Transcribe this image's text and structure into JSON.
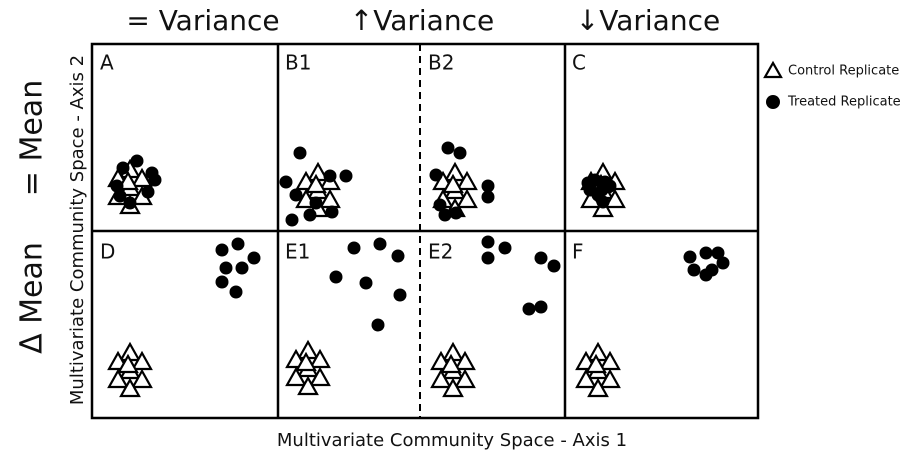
{
  "column_headers": [
    "= Variance",
    "↑Variance",
    "↓Variance"
  ],
  "row_headers": [
    "= Mean",
    "Δ Mean"
  ],
  "y_axis_label": "Multivariate Community Space - Axis 2",
  "x_axis_label": "Multivariate Community Space - Axis 1",
  "panels": [
    "A",
    "B1",
    "B2",
    "C",
    "D",
    "E1",
    "E2",
    "F"
  ],
  "legend": [
    "Control Replicate",
    "Treated Replicate"
  ]
}
